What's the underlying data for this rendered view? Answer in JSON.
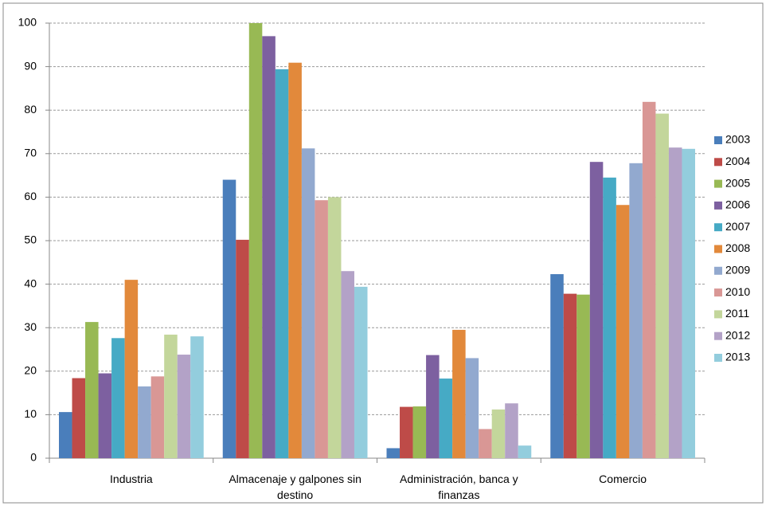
{
  "chart_data": {
    "type": "bar",
    "categories": [
      "Industria",
      "Almacenaje y galpones sin destino",
      "Administración, banca y finanzas",
      "Comercio"
    ],
    "series": [
      {
        "name": "2003",
        "color": "#4a7ebb",
        "values": [
          10.6,
          64.0,
          2.3,
          42.3
        ]
      },
      {
        "name": "2004",
        "color": "#be4b48",
        "values": [
          18.4,
          50.2,
          11.8,
          37.8
        ]
      },
      {
        "name": "2005",
        "color": "#98b954",
        "values": [
          31.3,
          100,
          11.9,
          37.6
        ]
      },
      {
        "name": "2006",
        "color": "#7d60a0",
        "values": [
          19.5,
          97.0,
          23.7,
          68.1
        ]
      },
      {
        "name": "2007",
        "color": "#46aac5",
        "values": [
          27.6,
          89.4,
          18.3,
          64.5
        ]
      },
      {
        "name": "2008",
        "color": "#e2893b",
        "values": [
          41.0,
          90.9,
          29.5,
          58.2
        ]
      },
      {
        "name": "2009",
        "color": "#92a9cf",
        "values": [
          16.5,
          71.2,
          23.0,
          67.8
        ]
      },
      {
        "name": "2010",
        "color": "#d99795",
        "values": [
          18.8,
          59.3,
          6.7,
          81.9
        ]
      },
      {
        "name": "2011",
        "color": "#c3d69b",
        "values": [
          28.4,
          60.0,
          11.2,
          79.2
        ]
      },
      {
        "name": "2012",
        "color": "#b3a2c7",
        "values": [
          23.8,
          43.0,
          12.6,
          71.4
        ]
      },
      {
        "name": "2013",
        "color": "#93cddd",
        "values": [
          28.0,
          39.4,
          2.9,
          71.1
        ]
      }
    ],
    "ylim": [
      0,
      100
    ],
    "yticks": [
      0,
      10,
      20,
      30,
      40,
      50,
      60,
      70,
      80,
      90,
      100
    ],
    "grid": true,
    "legend": "right"
  }
}
